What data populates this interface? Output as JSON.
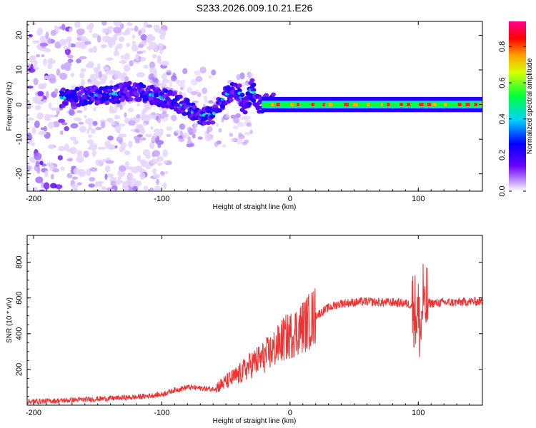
{
  "title": "S233.2026.009.10.21.E26",
  "chart_data": [
    {
      "type": "heatmap",
      "xlabel": "Height of straight line (km)",
      "ylabel": "Frequency (Hz)",
      "xlim": [
        -205,
        150
      ],
      "ylim": [
        -25,
        24
      ],
      "xticks": [
        -200,
        -100,
        0,
        100
      ],
      "yticks": [
        -20,
        -10,
        0,
        10,
        20
      ],
      "grid": false,
      "colorbar": {
        "label": "Normalized spectral amplitude",
        "range": [
          0,
          0.94
        ],
        "ticks": [
          "0.0",
          "0.2",
          "0.4",
          "0.6",
          "0.8"
        ],
        "colormap": "rainbow (white → violet → blue → cyan → green → yellow → red → magenta)"
      },
      "ridge": {
        "x": [
          -175,
          -160,
          -140,
          -120,
          -100,
          -90,
          -80,
          -70,
          -60,
          -50,
          -40,
          -35,
          -30,
          -25,
          -20,
          -15,
          -10,
          -5,
          0,
          10,
          30,
          50,
          70,
          90,
          100,
          105,
          120,
          150
        ],
        "y": [
          2,
          2.5,
          3,
          4,
          2,
          1,
          -1,
          -3,
          -3,
          3,
          4,
          -2,
          5,
          0,
          0,
          1,
          0,
          0.5,
          2,
          0.5,
          0,
          0,
          0,
          0,
          0,
          0,
          0,
          0
        ]
      }
    },
    {
      "type": "line",
      "xlabel": "Height of straight line (km)",
      "ylabel": "SNR (10 * v/v)",
      "xlim": [
        -205,
        150
      ],
      "ylim": [
        0,
        950
      ],
      "xticks": [
        -200,
        -100,
        0,
        100
      ],
      "yticks": [
        200,
        400,
        600,
        800
      ],
      "grid": false,
      "series": [
        {
          "color": "#ee3333",
          "x": [
            -205,
            -180,
            -150,
            -120,
            -100,
            -90,
            -80,
            -70,
            -60,
            -50,
            -40,
            -30,
            -25,
            -20,
            -15,
            -10,
            -5,
            0,
            10,
            20,
            30,
            40,
            50,
            60,
            70,
            80,
            90,
            95,
            100,
            102,
            104,
            105,
            106,
            110,
            120,
            130,
            140,
            150
          ],
          "y": [
            20,
            25,
            35,
            45,
            60,
            85,
            100,
            95,
            90,
            130,
            170,
            230,
            250,
            270,
            300,
            330,
            370,
            390,
            440,
            500,
            545,
            570,
            575,
            580,
            575,
            575,
            570,
            560,
            500,
            400,
            650,
            450,
            580,
            570,
            575,
            575,
            580,
            580
          ]
        }
      ]
    }
  ]
}
